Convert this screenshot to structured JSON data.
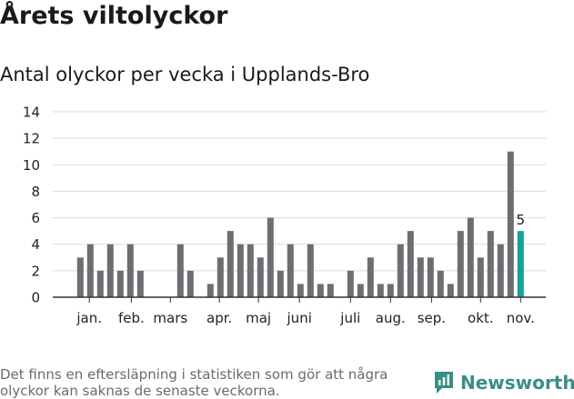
{
  "title": "Årets viltolyckor",
  "subtitle": "Antal olyckor per vecka i Upplands-Bro",
  "footnote": "Det finns en eftersläpning i statistiken som gör att några olyckor kan saknas de senaste veckorna.",
  "brand": {
    "name": "Newsworthy",
    "color": "#3a8f84"
  },
  "colors": {
    "bar": "#6d6e71",
    "highlight": "#14a39a",
    "grid": "#d9d9d9",
    "axis": "#333333"
  },
  "chart_data": {
    "type": "bar",
    "title": "Antal olyckor per vecka i Upplands-Bro",
    "xlabel": "",
    "ylabel": "",
    "ylim": [
      0,
      14
    ],
    "yticks": [
      0,
      2,
      4,
      6,
      8,
      10,
      12,
      14
    ],
    "grid": true,
    "weeks": [
      1,
      2,
      3,
      4,
      5,
      6,
      7,
      8,
      9,
      10,
      11,
      12,
      13,
      14,
      15,
      16,
      17,
      18,
      19,
      20,
      21,
      22,
      23,
      24,
      25,
      26,
      27,
      28,
      29,
      30,
      31,
      32,
      33,
      34,
      35,
      36,
      37,
      38,
      39,
      40,
      41,
      42,
      43,
      44,
      45,
      46
    ],
    "values": [
      3,
      4,
      2,
      4,
      2,
      4,
      2,
      0,
      0,
      0,
      4,
      2,
      0,
      1,
      3,
      5,
      4,
      4,
      3,
      6,
      2,
      4,
      1,
      4,
      1,
      1,
      0,
      2,
      1,
      3,
      1,
      1,
      4,
      5,
      3,
      3,
      2,
      1,
      5,
      6,
      3,
      5,
      4,
      11,
      5,
      0
    ],
    "highlight": {
      "week": 45,
      "value": 5,
      "label": "5"
    },
    "month_labels": [
      {
        "label": "jan.",
        "week": 1.9
      },
      {
        "label": "feb.",
        "week": 6.1
      },
      {
        "label": "mars",
        "week": 10.0
      },
      {
        "label": "apr.",
        "week": 14.9
      },
      {
        "label": "maj",
        "week": 18.8
      },
      {
        "label": "juni",
        "week": 22.9
      },
      {
        "label": "juli",
        "week": 28.0
      },
      {
        "label": "aug.",
        "week": 32.0
      },
      {
        "label": "sep.",
        "week": 36.1
      },
      {
        "label": "okt.",
        "week": 41.0
      },
      {
        "label": "nov.",
        "week": 45.0
      }
    ]
  }
}
